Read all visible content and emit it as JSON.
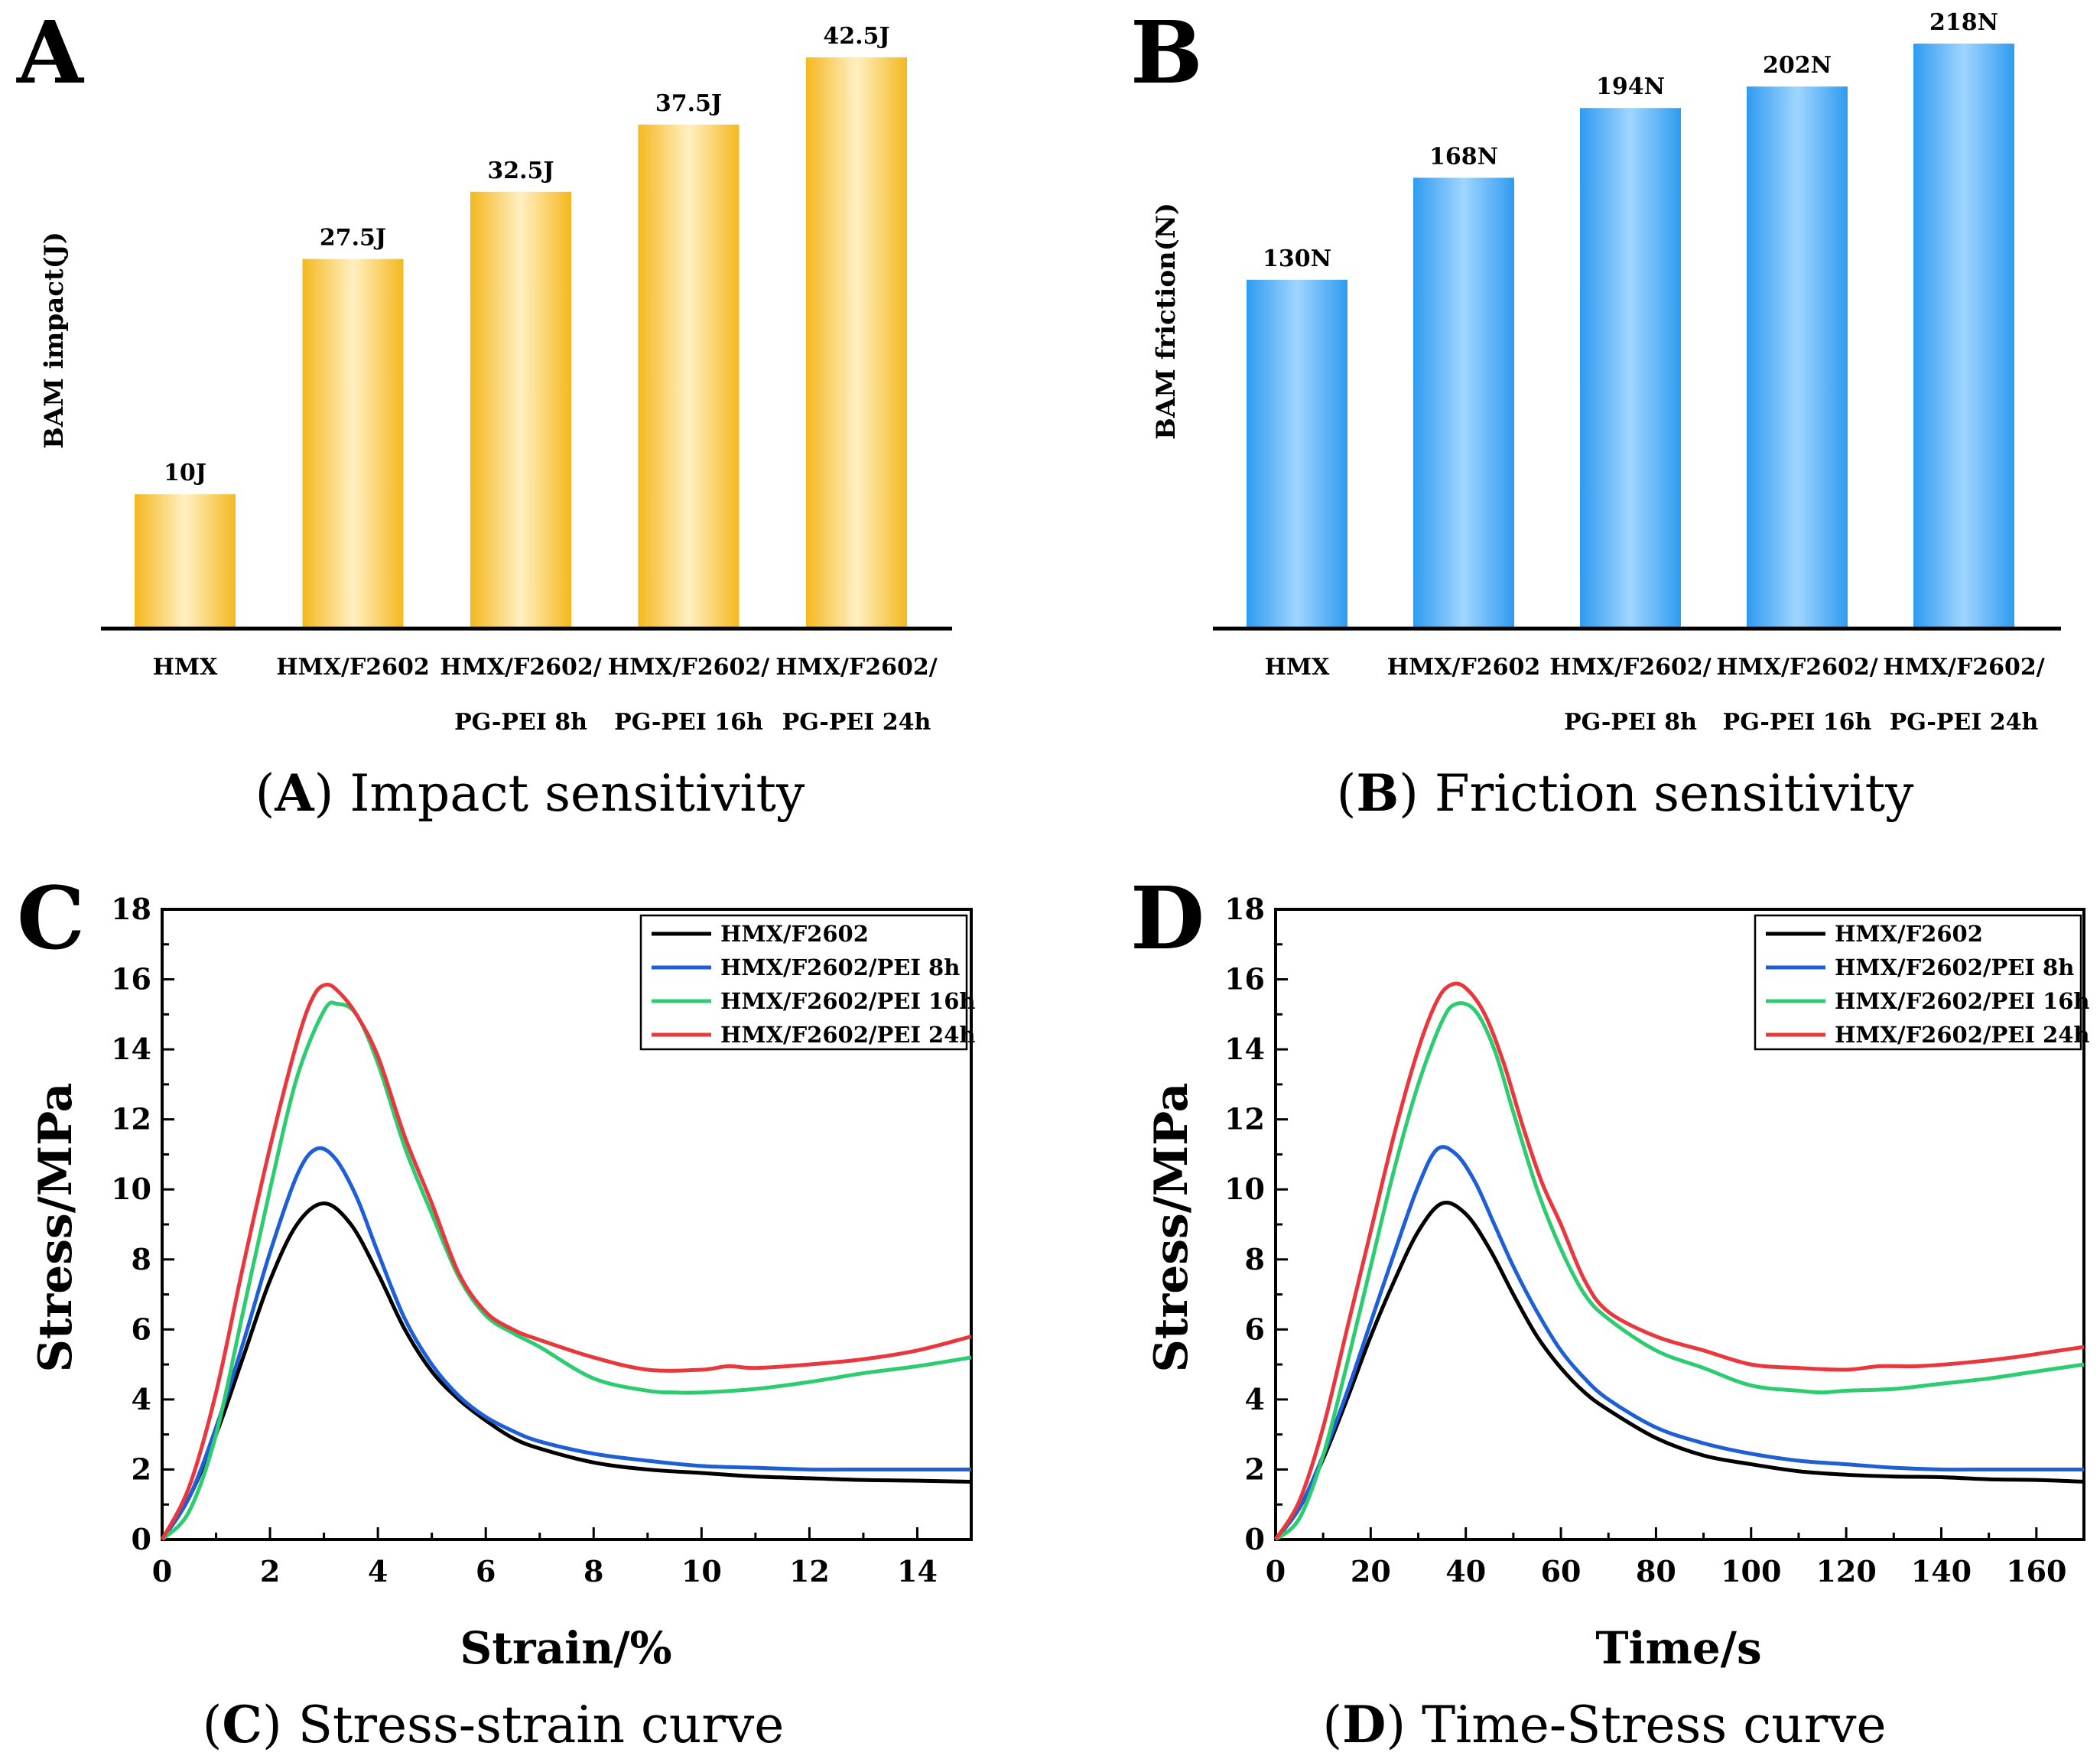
{
  "figure": {
    "colors": {
      "impact_bar_edge": "#f5b81f",
      "impact_bar_mid": "#fff0c2",
      "friction_bar_edge": "#2f9bf0",
      "friction_bar_mid": "#9fd6ff",
      "axis": "#000000"
    }
  },
  "chart_data": [
    {
      "id": "A",
      "type": "bar",
      "panel_letter": "A",
      "ylabel": "BAM impact(J)",
      "categories": [
        [
          "HMX"
        ],
        [
          "HMX/F2602"
        ],
        [
          "HMX/F2602/",
          "PG-PEI 8h"
        ],
        [
          "HMX/F2602/",
          "PG-PEI 16h"
        ],
        [
          "HMX/F2602/",
          "PG-PEI 24h"
        ]
      ],
      "values": [
        10,
        27.5,
        32.5,
        37.5,
        42.5
      ],
      "value_labels": [
        "10J",
        "27.5J",
        "32.5J",
        "37.5J",
        "42.5J"
      ],
      "ylim": [
        0,
        42.5
      ],
      "caption_letter": "A",
      "caption_text": "Impact sensitivity"
    },
    {
      "id": "B",
      "type": "bar",
      "panel_letter": "B",
      "ylabel": "BAM friction(N)",
      "categories": [
        [
          "HMX"
        ],
        [
          "HMX/F2602"
        ],
        [
          "HMX/F2602/",
          "PG-PEI 8h"
        ],
        [
          "HMX/F2602/",
          "PG-PEI 16h"
        ],
        [
          "HMX/F2602/",
          "PG-PEI 24h"
        ]
      ],
      "values": [
        130,
        168,
        194,
        202,
        218
      ],
      "value_labels": [
        "130N",
        "168N",
        "194N",
        "202N",
        "218N"
      ],
      "ylim": [
        0,
        218
      ],
      "caption_letter": "B",
      "caption_text": "Friction sensitivity"
    },
    {
      "id": "C",
      "type": "line",
      "panel_letter": "C",
      "xlabel": "Strain/%",
      "ylabel": "Stress/MPa",
      "xlim": [
        0,
        15
      ],
      "ylim": [
        0,
        18
      ],
      "xticks": [
        0,
        2,
        4,
        6,
        8,
        10,
        12,
        14
      ],
      "yticks": [
        0,
        2,
        4,
        6,
        8,
        10,
        12,
        14,
        16,
        18
      ],
      "legend_position": "top-right",
      "series": [
        {
          "name": "HMX/F2602",
          "color": "#000000",
          "x": [
            0,
            0.5,
            1,
            1.5,
            2,
            2.5,
            3,
            3.5,
            4,
            4.5,
            5,
            5.5,
            6,
            6.5,
            7,
            8,
            9,
            10,
            11,
            12,
            13,
            14,
            15
          ],
          "y": [
            0,
            1.2,
            3.0,
            5.2,
            7.4,
            9.0,
            9.6,
            9.0,
            7.6,
            6.0,
            4.8,
            4.0,
            3.4,
            2.9,
            2.6,
            2.2,
            2.0,
            1.9,
            1.8,
            1.75,
            1.7,
            1.68,
            1.65
          ]
        },
        {
          "name": "HMX/F2602/PEI 8h",
          "color": "#1f5fd6",
          "x": [
            0,
            0.5,
            1,
            1.5,
            2,
            2.5,
            2.85,
            3.2,
            3.6,
            4,
            4.5,
            5,
            5.5,
            6,
            6.5,
            7,
            8,
            9,
            10,
            11,
            12,
            13,
            14,
            15
          ],
          "y": [
            0,
            1.2,
            3.2,
            5.6,
            8.2,
            10.4,
            11.15,
            10.9,
            9.8,
            8.2,
            6.3,
            5.0,
            4.1,
            3.5,
            3.1,
            2.8,
            2.45,
            2.25,
            2.1,
            2.05,
            2.0,
            2.0,
            2.0,
            2.0
          ]
        },
        {
          "name": "HMX/F2602/PEI 16h",
          "color": "#2ecc71",
          "x": [
            0,
            0.5,
            1,
            1.5,
            2,
            2.5,
            3,
            3.25,
            3.6,
            4,
            4.5,
            5,
            5.5,
            6,
            6.5,
            7,
            8,
            9,
            9.5,
            10,
            11,
            12,
            13,
            14,
            15
          ],
          "y": [
            0,
            0.8,
            3.0,
            6.5,
            10.0,
            13.2,
            15.1,
            15.3,
            15.0,
            13.6,
            11.2,
            9.3,
            7.5,
            6.4,
            5.9,
            5.5,
            4.6,
            4.25,
            4.2,
            4.2,
            4.3,
            4.5,
            4.75,
            4.95,
            5.2
          ]
        },
        {
          "name": "HMX/F2602/PEI 24h",
          "color": "#e8383d",
          "x": [
            0,
            0.5,
            1,
            1.5,
            2,
            2.5,
            2.8,
            3.05,
            3.3,
            3.6,
            4,
            4.5,
            5,
            5.5,
            6,
            6.5,
            7,
            8,
            9,
            10,
            10.5,
            11,
            12,
            13,
            14,
            15
          ],
          "y": [
            0,
            1.5,
            4.2,
            7.8,
            11.2,
            14.2,
            15.5,
            15.85,
            15.6,
            15.0,
            13.8,
            11.5,
            9.6,
            7.6,
            6.5,
            6.0,
            5.7,
            5.2,
            4.85,
            4.85,
            4.95,
            4.9,
            5.0,
            5.15,
            5.4,
            5.8
          ]
        }
      ],
      "caption_letter": "C",
      "caption_text": "Stress-strain curve"
    },
    {
      "id": "D",
      "type": "line",
      "panel_letter": "D",
      "xlabel": "Time/s",
      "ylabel": "Stress/MPa",
      "xlim": [
        0,
        170
      ],
      "ylim": [
        0,
        18
      ],
      "xticks": [
        0,
        20,
        40,
        60,
        80,
        100,
        120,
        140,
        160
      ],
      "yticks": [
        0,
        2,
        4,
        6,
        8,
        10,
        12,
        14,
        16,
        18
      ],
      "legend_position": "top-right",
      "series": [
        {
          "name": "HMX/F2602",
          "color": "#000000",
          "x": [
            0,
            5,
            10,
            15,
            20,
            25,
            30,
            35,
            40,
            45,
            50,
            55,
            60,
            65,
            70,
            80,
            90,
            100,
            110,
            120,
            130,
            140,
            150,
            160,
            170
          ],
          "y": [
            0,
            0.9,
            2.3,
            4.0,
            5.8,
            7.4,
            8.8,
            9.6,
            9.3,
            8.3,
            7.0,
            5.8,
            4.9,
            4.2,
            3.7,
            2.9,
            2.4,
            2.15,
            1.95,
            1.85,
            1.8,
            1.78,
            1.72,
            1.7,
            1.65
          ]
        },
        {
          "name": "HMX/F2602/PEI 8h",
          "color": "#1f5fd6",
          "x": [
            0,
            5,
            10,
            15,
            20,
            25,
            30,
            34,
            38,
            42,
            46,
            50,
            55,
            60,
            65,
            70,
            80,
            90,
            100,
            110,
            120,
            130,
            140,
            150,
            160,
            170
          ],
          "y": [
            0,
            0.9,
            2.4,
            4.2,
            6.2,
            8.2,
            10.1,
            11.15,
            11.0,
            10.2,
            9.0,
            7.8,
            6.5,
            5.4,
            4.6,
            4.0,
            3.2,
            2.75,
            2.45,
            2.25,
            2.15,
            2.05,
            2.0,
            2.0,
            2.0,
            2.0
          ]
        },
        {
          "name": "HMX/F2602/PEI 16h",
          "color": "#2ecc71",
          "x": [
            0,
            5,
            10,
            15,
            20,
            25,
            30,
            35,
            38,
            42,
            46,
            50,
            55,
            60,
            65,
            70,
            80,
            90,
            100,
            110,
            115,
            120,
            130,
            140,
            150,
            160,
            170
          ],
          "y": [
            0,
            0.6,
            2.4,
            5.0,
            7.8,
            10.6,
            13.0,
            14.8,
            15.3,
            15.1,
            14.0,
            12.2,
            10.0,
            8.3,
            7.0,
            6.3,
            5.4,
            4.9,
            4.4,
            4.25,
            4.2,
            4.25,
            4.3,
            4.45,
            4.6,
            4.8,
            5.0
          ]
        },
        {
          "name": "HMX/F2602/PEI 24h",
          "color": "#e8383d",
          "x": [
            0,
            5,
            10,
            15,
            20,
            25,
            30,
            34,
            37,
            40,
            44,
            48,
            52,
            56,
            60,
            65,
            70,
            80,
            90,
            100,
            110,
            120,
            127,
            135,
            145,
            155,
            165,
            170
          ],
          "y": [
            0,
            1.1,
            3.2,
            6.0,
            8.8,
            11.6,
            14.0,
            15.4,
            15.85,
            15.75,
            15.0,
            13.6,
            11.8,
            10.2,
            9.0,
            7.4,
            6.5,
            5.8,
            5.4,
            5.0,
            4.9,
            4.85,
            4.95,
            4.95,
            5.05,
            5.2,
            5.4,
            5.5
          ]
        }
      ],
      "caption_letter": "D",
      "caption_text": "Time-Stress curve"
    }
  ]
}
